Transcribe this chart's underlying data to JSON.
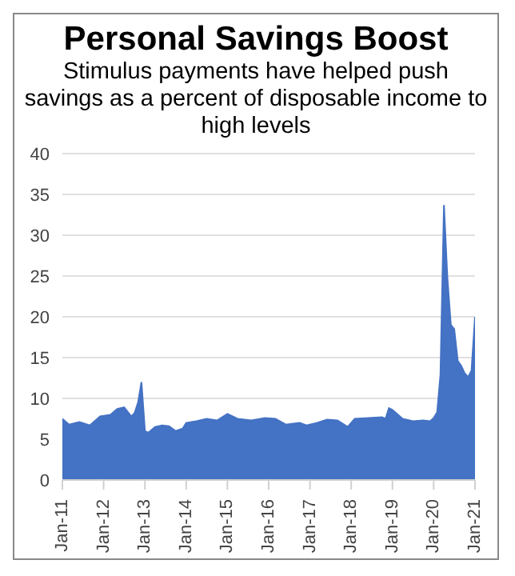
{
  "chart_data": {
    "type": "area",
    "title": "Personal Savings Boost",
    "subtitle": "Stimulus payments have helped push savings as a percent of disposable income to high levels",
    "x": [
      "2011-01",
      "2011-03",
      "2011-06",
      "2011-09",
      "2011-12",
      "2012-03",
      "2012-05",
      "2012-07",
      "2012-09",
      "2012-10",
      "2012-11",
      "2012-12",
      "2013-01",
      "2013-02",
      "2013-04",
      "2013-06",
      "2013-08",
      "2013-10",
      "2013-12",
      "2014-01",
      "2014-04",
      "2014-07",
      "2014-10",
      "2015-01",
      "2015-04",
      "2015-08",
      "2015-12",
      "2016-03",
      "2016-06",
      "2016-10",
      "2016-12",
      "2017-03",
      "2017-06",
      "2017-09",
      "2017-12",
      "2018-02",
      "2018-06",
      "2018-10",
      "2018-11",
      "2018-12",
      "2019-01",
      "2019-04",
      "2019-07",
      "2019-10",
      "2019-12",
      "2020-01",
      "2020-02",
      "2020-03",
      "2020-04",
      "2020-05",
      "2020-06",
      "2020-07",
      "2020-08",
      "2020-09",
      "2020-10",
      "2020-11",
      "2020-12",
      "2021-01"
    ],
    "series": [
      {
        "color": "#4472c4",
        "values": [
          7.5,
          6.8,
          7.1,
          6.7,
          7.8,
          8.0,
          8.7,
          8.9,
          7.8,
          8.2,
          9.5,
          12.0,
          6.0,
          5.8,
          6.5,
          6.7,
          6.6,
          6.0,
          6.3,
          7.0,
          7.2,
          7.5,
          7.3,
          8.1,
          7.5,
          7.3,
          7.6,
          7.5,
          6.8,
          7.0,
          6.7,
          7.0,
          7.4,
          7.3,
          6.5,
          7.5,
          7.6,
          7.7,
          7.5,
          8.8,
          8.6,
          7.5,
          7.2,
          7.3,
          7.2,
          7.6,
          8.3,
          12.9,
          33.7,
          24.9,
          19.0,
          18.5,
          14.6,
          14.0,
          13.1,
          12.6,
          13.4,
          20.0
        ]
      }
    ],
    "xlim": [
      "2011-01",
      "2021-01"
    ],
    "xticks": [
      {
        "value": "2011-01",
        "label": "Jan-11"
      },
      {
        "value": "2012-01",
        "label": "Jan-12"
      },
      {
        "value": "2013-01",
        "label": "Jan-13"
      },
      {
        "value": "2014-01",
        "label": "Jan-14"
      },
      {
        "value": "2015-01",
        "label": "Jan-15"
      },
      {
        "value": "2016-01",
        "label": "Jan-16"
      },
      {
        "value": "2017-01",
        "label": "Jan-17"
      },
      {
        "value": "2018-01",
        "label": "Jan-18"
      },
      {
        "value": "2019-01",
        "label": "Jan-19"
      },
      {
        "value": "2020-01",
        "label": "Jan-20"
      },
      {
        "value": "2021-01",
        "label": "Jan-21"
      }
    ],
    "ylim": [
      0,
      40
    ],
    "yticks": [
      0,
      5,
      10,
      15,
      20,
      25,
      30,
      35,
      40
    ],
    "grid": "y",
    "legend": false
  }
}
